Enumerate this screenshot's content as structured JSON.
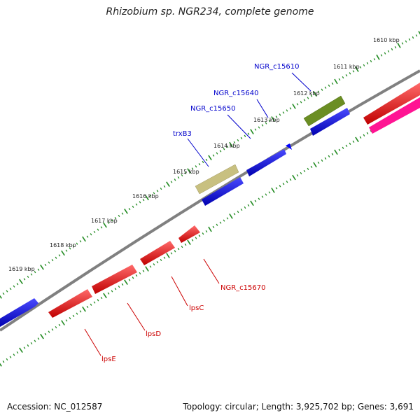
{
  "header": {
    "title": "Rhizobium sp. NGR234, complete genome"
  },
  "footer": {
    "accession": "Accession: NC_012587",
    "topology": "Topology: circular; Length: 3,925,702 bp; Genes: 3,691"
  },
  "scale": {
    "unit": "kbp",
    "labels": [
      "1610 kbp",
      "1611 kbp",
      "1612 kbp",
      "1613 kbp",
      "1614 kbp",
      "1615 kbp",
      "1616 kbp",
      "1617 kbp",
      "1618 kbp",
      "1619 kbp"
    ]
  },
  "strands": {
    "forward": [
      {
        "label": "NGR_c15610",
        "color": "#6b8e23"
      },
      {
        "label": "",
        "color": "#0000ff"
      },
      {
        "label": "NGR_c15640",
        "color": "#0000ff"
      },
      {
        "label": "NGR_c15650",
        "color": "#0000ff"
      },
      {
        "label": "trxB3",
        "color": "#c8c080"
      },
      {
        "label": "",
        "color": "#0000ff"
      },
      {
        "label": "",
        "color": "#0000ff"
      }
    ],
    "reverse": [
      {
        "label": "",
        "color": "#ff0000"
      },
      {
        "label": "",
        "color": "#ff1493"
      },
      {
        "label": "NGR_c15670",
        "color": "#ff0000"
      },
      {
        "label": "lpsC",
        "color": "#ff0000"
      },
      {
        "label": "lpsD",
        "color": "#ff0000"
      },
      {
        "label": "lpsE",
        "color": "#ff0000"
      }
    ]
  },
  "colors": {
    "tick": "#228b22",
    "backbone": "#808080",
    "forward_label": "#0000cc",
    "reverse_label": "#cc0000"
  }
}
